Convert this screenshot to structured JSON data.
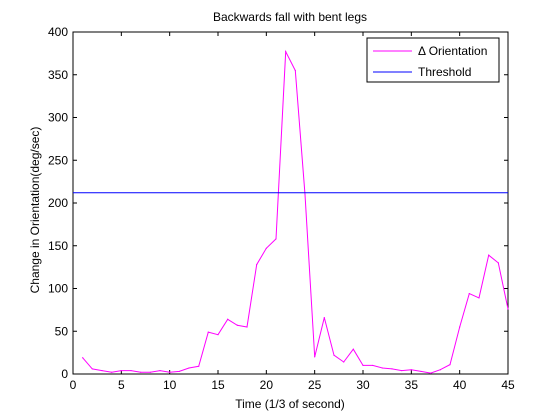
{
  "chart_data": {
    "type": "line",
    "title": "Backwards fall with bent legs",
    "xlabel": "Time (1/3 of second)",
    "ylabel": "Change in Orientation(deg/sec)",
    "xlim": [
      0,
      45
    ],
    "ylim": [
      0,
      400
    ],
    "xticks": [
      0,
      5,
      10,
      15,
      20,
      25,
      30,
      35,
      40,
      45
    ],
    "yticks": [
      0,
      50,
      100,
      150,
      200,
      250,
      300,
      350,
      400
    ],
    "grid": false,
    "legend_position": "top-right",
    "series": [
      {
        "name": "Δ Orientation",
        "color": "#ff00ff",
        "x": [
          1,
          2,
          3,
          4,
          5,
          6,
          7,
          8,
          9,
          10,
          11,
          12,
          13,
          14,
          15,
          16,
          17,
          18,
          19,
          20,
          21,
          22,
          23,
          24,
          25,
          26,
          27,
          28,
          29,
          30,
          31,
          32,
          33,
          34,
          35,
          36,
          37,
          38,
          39,
          40,
          41,
          42,
          43,
          44,
          45
        ],
        "values": [
          19,
          6,
          4,
          2,
          4,
          4,
          2,
          2,
          4,
          2,
          3,
          7,
          9,
          49,
          46,
          64,
          57,
          55,
          128,
          147,
          158,
          377,
          355,
          210,
          20,
          66,
          22,
          14,
          29,
          10,
          10,
          7,
          6,
          4,
          5,
          3,
          1,
          5,
          11,
          55,
          94,
          89,
          139,
          130,
          76
        ]
      },
      {
        "name": "Threshold",
        "color": "#0000ff",
        "x": [
          0,
          45
        ],
        "values": [
          212,
          212
        ]
      }
    ]
  }
}
